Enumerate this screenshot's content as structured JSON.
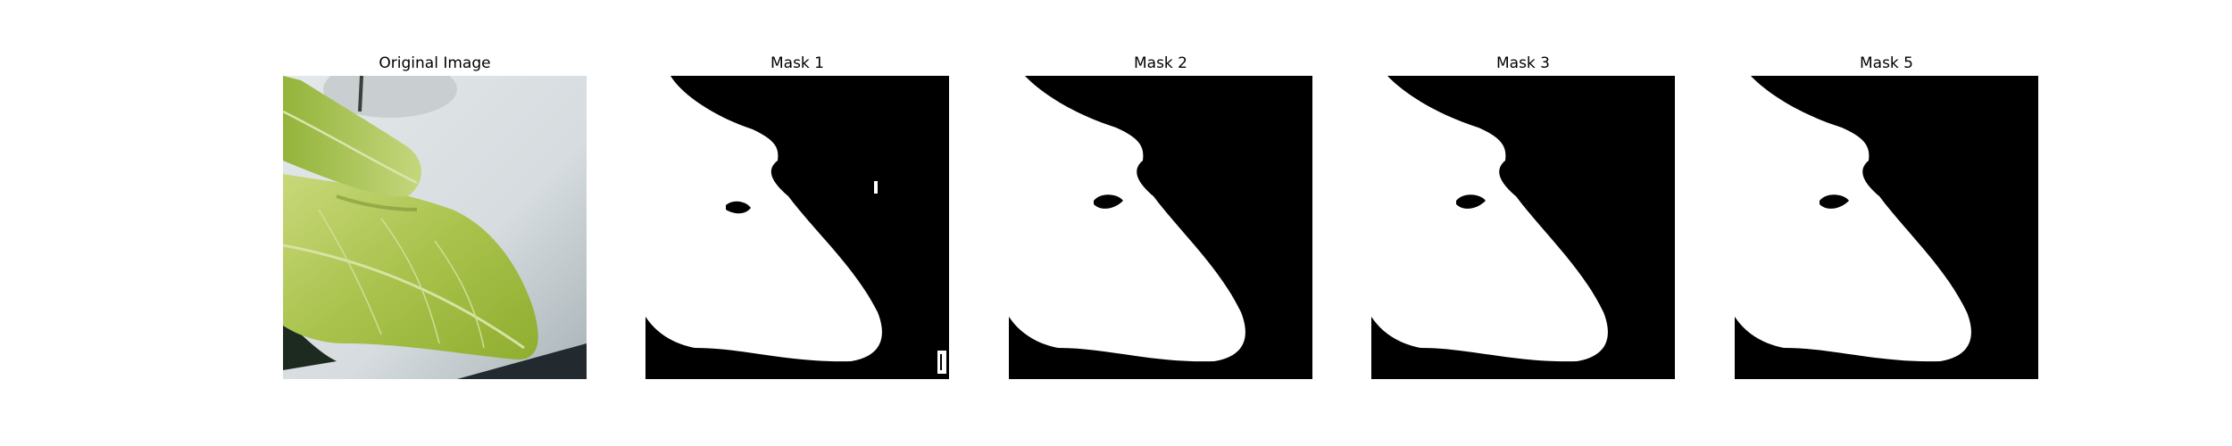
{
  "figure": {
    "panels": [
      {
        "title": "Original Image",
        "kind": "photo",
        "icon": "leaf-photo"
      },
      {
        "title": "Mask 1",
        "kind": "mask",
        "icon": "segmentation-mask"
      },
      {
        "title": "Mask 2",
        "kind": "mask",
        "icon": "segmentation-mask"
      },
      {
        "title": "Mask 3",
        "kind": "mask",
        "icon": "segmentation-mask"
      },
      {
        "title": "Mask 5",
        "kind": "mask",
        "icon": "segmentation-mask"
      }
    ],
    "colors": {
      "mask_foreground": "#ffffff",
      "mask_background": "#000000",
      "leaf": "#b5c95a",
      "backdrop": "#dde2e5"
    }
  }
}
